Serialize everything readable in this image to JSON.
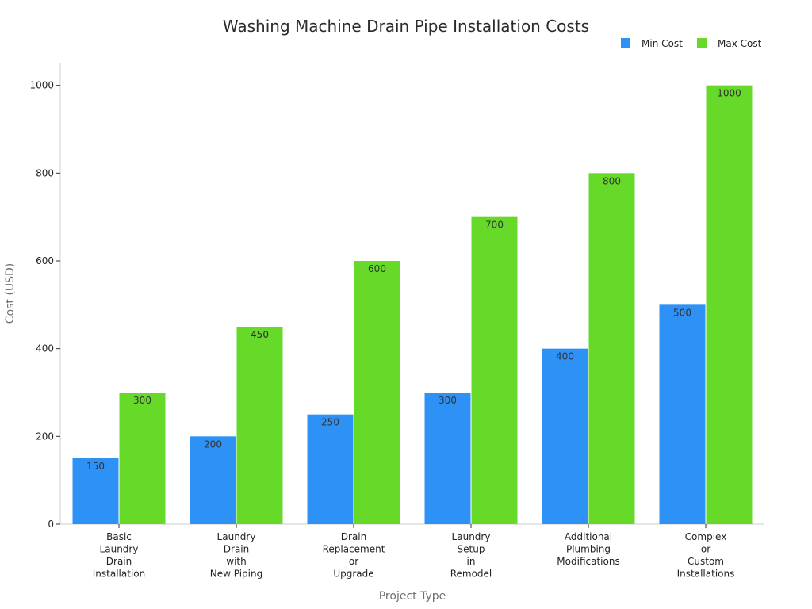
{
  "chart_data": {
    "type": "bar",
    "title": "Washing Machine Drain Pipe Installation Costs",
    "xlabel": "Project Type",
    "ylabel": "Cost (USD)",
    "ylim": [
      0,
      1050
    ],
    "yticks": [
      0,
      200,
      400,
      600,
      800,
      1000
    ],
    "grid": false,
    "legend_position": "top-right",
    "categories": [
      [
        "Basic",
        "Laundry",
        "Drain",
        "Installation"
      ],
      [
        "Laundry",
        "Drain",
        "with",
        "New Piping"
      ],
      [
        "Drain",
        "Replacement",
        "or",
        "Upgrade"
      ],
      [
        "Laundry",
        "Setup",
        "in",
        "Remodel"
      ],
      [
        "Additional",
        "Plumbing",
        "Modifications"
      ],
      [
        "Complex",
        "or",
        "Custom",
        "Installations"
      ]
    ],
    "series": [
      {
        "name": "Min Cost",
        "color": "#2e91f5",
        "values": [
          150,
          200,
          250,
          300,
          400,
          500
        ]
      },
      {
        "name": "Max Cost",
        "color": "#66d929",
        "values": [
          300,
          450,
          600,
          700,
          800,
          1000
        ]
      }
    ]
  }
}
